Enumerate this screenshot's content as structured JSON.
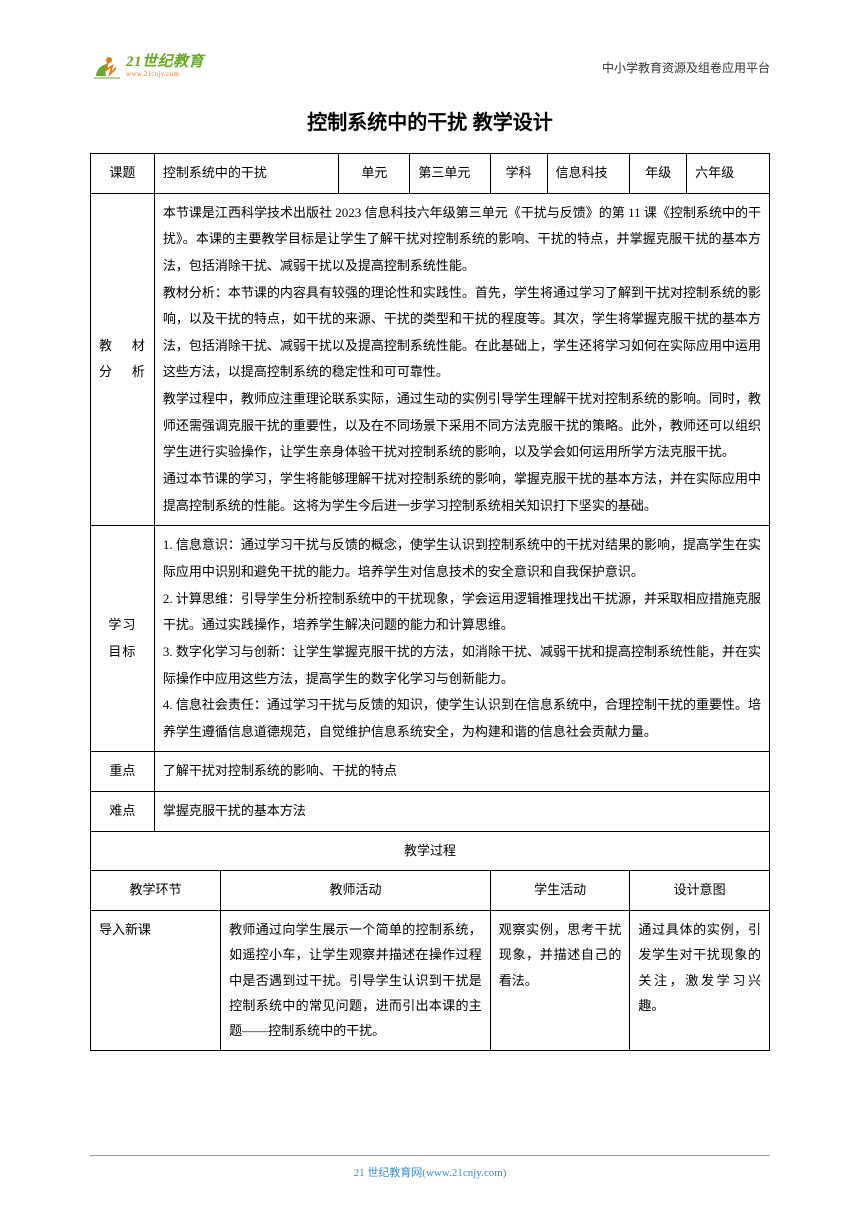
{
  "header": {
    "logo_main": "21世纪教育",
    "logo_sub": "www.21cnjy.com",
    "right": "中小学教育资源及组卷应用平台"
  },
  "title": "控制系统中的干扰 教学设计",
  "row1": {
    "c1": "课题",
    "c2": "控制系统中的干扰",
    "c3": "单元",
    "c4": "第三单元",
    "c5": "学科",
    "c6": "信息科技",
    "c7": "年级",
    "c8": "六年级"
  },
  "row2": {
    "label1": "教 材",
    "label2": "分 析",
    "content": "本节课是江西科学技术出版社 2023 信息科技六年级第三单元《干扰与反馈》的第 11 课《控制系统中的干扰》。本课的主要教学目标是让学生了解干扰对控制系统的影响、干扰的特点，并掌握克服干扰的基本方法，包括消除干扰、减弱干扰以及提高控制系统性能。\n教材分析：本节课的内容具有较强的理论性和实践性。首先，学生将通过学习了解到干扰对控制系统的影响，以及干扰的特点，如干扰的来源、干扰的类型和干扰的程度等。其次，学生将掌握克服干扰的基本方法，包括消除干扰、减弱干扰以及提高控制系统性能。在此基础上，学生还将学习如何在实际应用中运用这些方法，以提高控制系统的稳定性和可可靠性。\n教学过程中，教师应注重理论联系实际，通过生动的实例引导学生理解干扰对控制系统的影响。同时，教师还需强调克服干扰的重要性，以及在不同场景下采用不同方法克服干扰的策略。此外，教师还可以组织学生进行实验操作，让学生亲身体验干扰对控制系统的影响，以及学会如何运用所学方法克服干扰。\n通过本节课的学习，学生将能够理解干扰对控制系统的影响，掌握克服干扰的基本方法，并在实际应用中提高控制系统的性能。这将为学生今后进一步学习控制系统相关知识打下坚实的基础。"
  },
  "row3": {
    "label1": "学习",
    "label2": "目标",
    "content": "1. 信息意识：通过学习干扰与反馈的概念，使学生认识到控制系统中的干扰对结果的影响，提高学生在实际应用中识别和避免干扰的能力。培养学生对信息技术的安全意识和自我保护意识。\n2. 计算思维：引导学生分析控制系统中的干扰现象，学会运用逻辑推理找出干扰源，并采取相应措施克服干扰。通过实践操作，培养学生解决问题的能力和计算思维。\n3. 数字化学习与创新：让学生掌握克服干扰的方法，如消除干扰、减弱干扰和提高控制系统性能，并在实际操作中应用这些方法，提高学生的数字化学习与创新能力。\n4. 信息社会责任：通过学习干扰与反馈的知识，使学生认识到在信息系统中，合理控制干扰的重要性。培养学生遵循信息道德规范，自觉维护信息系统安全，为构建和谐的信息社会贡献力量。"
  },
  "row4": {
    "label": "重点",
    "content": "了解干扰对控制系统的影响、干扰的特点"
  },
  "row5": {
    "label": "难点",
    "content": "掌握克服干扰的基本方法"
  },
  "row6": {
    "header": "教学过程"
  },
  "row7": {
    "c1": "教学环节",
    "c2": "教师活动",
    "c3": "学生活动",
    "c4": "设计意图"
  },
  "row8": {
    "c1": "导入新课",
    "c2": "教师通过向学生展示一个简单的控制系统，如遥控小车，让学生观察并描述在操作过程中是否遇到过干扰。引导学生认识到干扰是控制系统中的常见问题，进而引出本课的主题——控制系统中的干扰。",
    "c3": "观察实例，思考干扰现象，并描述自己的看法。",
    "c4": "通过具体的实例，引发学生对干扰现象的关注，激发学习兴趣。"
  },
  "footer": "21 世纪教育网(www.21cnjy.com)",
  "colors": {
    "border": "#000000",
    "logo_green": "#6aa82a",
    "logo_orange": "#e67817",
    "footer": "#3a8bc0",
    "bg": "#ffffff"
  },
  "typography": {
    "title_fontsize": 20,
    "cell_fontsize": 13,
    "line_height": 2.05
  }
}
